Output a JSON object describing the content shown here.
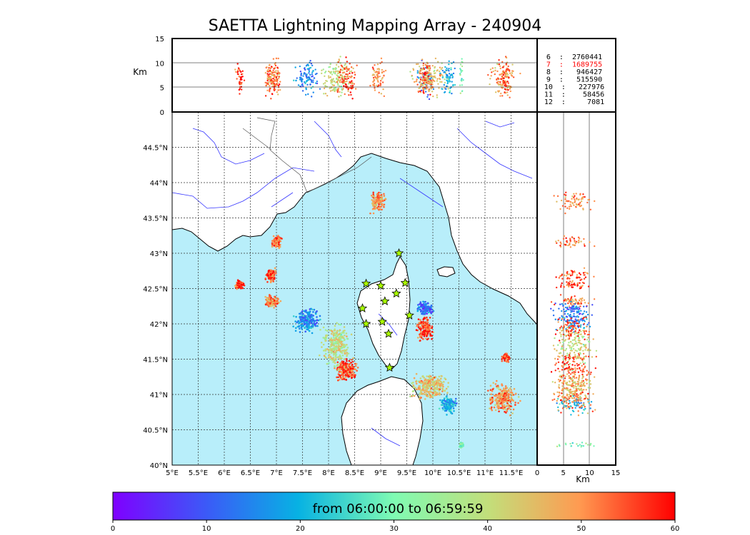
{
  "title": "SAETTA Lightning Mapping Array - 240904",
  "chart_data": {
    "type": "scatter",
    "title": "SAETTA Lightning Mapping Array - 240904",
    "map": {
      "lon_range": [
        5,
        12
      ],
      "lat_range": [
        40,
        45
      ],
      "x_ticks": [
        "5°E",
        "5.5°E",
        "6°E",
        "6.5°E",
        "7°E",
        "7.5°E",
        "8°E",
        "8.5°E",
        "9°E",
        "9.5°E",
        "10°E",
        "10.5°E",
        "11°E",
        "11.5°E"
      ],
      "y_ticks": [
        "40°N",
        "40.5°N",
        "41°N",
        "41.5°N",
        "42°N",
        "42.5°N",
        "43°N",
        "43.5°N",
        "44°N",
        "44.5°N"
      ],
      "grid": true
    },
    "top_panel": {
      "ylabel": "Km",
      "y_ticks": [
        "0",
        "5",
        "10",
        "15"
      ],
      "ylim": [
        0,
        15
      ]
    },
    "side_panel": {
      "xlabel": "Km",
      "x_ticks": [
        "0",
        "5",
        "10",
        "15"
      ],
      "xlim": [
        0,
        15
      ]
    },
    "legend": {
      "rows": [
        {
          "label": "6  :  2760441",
          "color": "#000000"
        },
        {
          "label": "7  :  1689755",
          "color": "#ff0000"
        },
        {
          "label": "8  :   946427",
          "color": "#000000"
        },
        {
          "label": "9  :   515590",
          "color": "#000000"
        },
        {
          "label": "10  :   227976",
          "color": "#000000"
        },
        {
          "label": "11  :    58456",
          "color": "#000000"
        },
        {
          "label": "12  :     7081",
          "color": "#000000"
        }
      ]
    },
    "stations": [
      {
        "lon": 9.35,
        "lat": 43.0
      },
      {
        "lon": 8.72,
        "lat": 42.57
      },
      {
        "lon": 9.0,
        "lat": 42.54
      },
      {
        "lon": 9.47,
        "lat": 42.58
      },
      {
        "lon": 9.3,
        "lat": 42.43
      },
      {
        "lon": 9.08,
        "lat": 42.32
      },
      {
        "lon": 8.65,
        "lat": 42.22
      },
      {
        "lon": 8.72,
        "lat": 42.0
      },
      {
        "lon": 9.03,
        "lat": 42.03
      },
      {
        "lon": 9.55,
        "lat": 42.12
      },
      {
        "lon": 9.15,
        "lat": 41.86
      },
      {
        "lon": 9.17,
        "lat": 41.38
      }
    ],
    "storms": [
      {
        "lon": 8.95,
        "lat": 43.72,
        "rlon": 0.18,
        "rlat": 0.18,
        "t": 50
      },
      {
        "lon": 7.0,
        "lat": 43.15,
        "rlon": 0.12,
        "rlat": 0.12,
        "t": 52
      },
      {
        "lon": 6.9,
        "lat": 42.68,
        "rlon": 0.14,
        "rlat": 0.12,
        "t": 55
      },
      {
        "lon": 6.3,
        "lat": 42.55,
        "rlon": 0.13,
        "rlat": 0.08,
        "t": 56
      },
      {
        "lon": 6.9,
        "lat": 42.32,
        "rlon": 0.2,
        "rlat": 0.1,
        "t": 50
      },
      {
        "lon": 7.6,
        "lat": 42.05,
        "rlon": 0.32,
        "rlat": 0.22,
        "t": 15
      },
      {
        "lon": 8.15,
        "lat": 41.7,
        "rlon": 0.35,
        "rlat": 0.4,
        "t": 40
      },
      {
        "lon": 8.35,
        "lat": 41.35,
        "rlon": 0.3,
        "rlat": 0.2,
        "t": 55
      },
      {
        "lon": 9.85,
        "lat": 42.22,
        "rlon": 0.2,
        "rlat": 0.12,
        "t": 12
      },
      {
        "lon": 9.85,
        "lat": 41.92,
        "rlon": 0.2,
        "rlat": 0.22,
        "t": 55
      },
      {
        "lon": 9.95,
        "lat": 41.12,
        "rlon": 0.45,
        "rlat": 0.25,
        "t": 45
      },
      {
        "lon": 10.3,
        "lat": 40.85,
        "rlon": 0.2,
        "rlat": 0.15,
        "t": 20
      },
      {
        "lon": 11.35,
        "lat": 40.95,
        "rlon": 0.35,
        "rlat": 0.28,
        "t": 50
      },
      {
        "lon": 11.4,
        "lat": 41.52,
        "rlon": 0.1,
        "rlat": 0.08,
        "t": 55
      },
      {
        "lon": 10.55,
        "lat": 40.28,
        "rlon": 0.06,
        "rlat": 0.05,
        "t": 30
      }
    ]
  },
  "colorbar": {
    "text": "from 06:00:00 to 06:59:59",
    "ticks": [
      "0",
      "10",
      "20",
      "30",
      "40",
      "50",
      "60"
    ],
    "range": [
      0,
      60
    ]
  }
}
